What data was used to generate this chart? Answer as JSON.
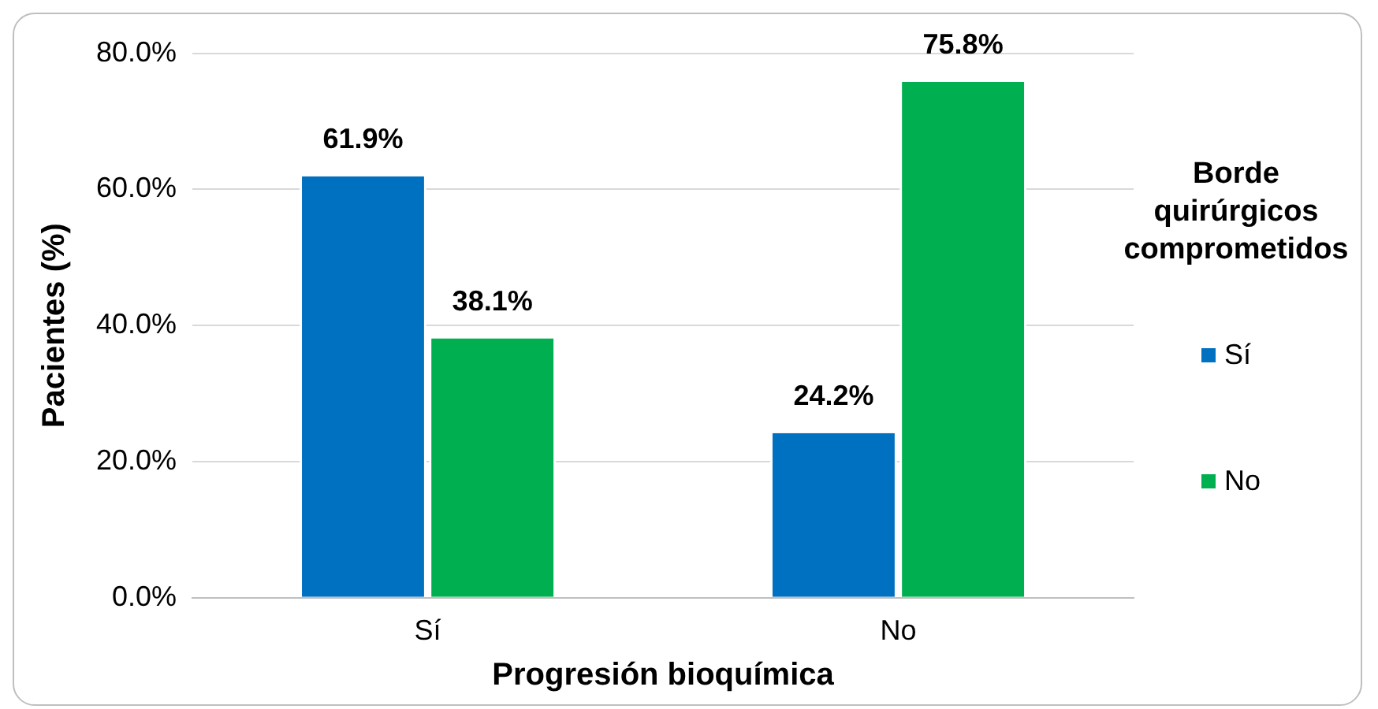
{
  "chart_data": {
    "type": "bar",
    "xlabel": "Progresión bioquímica",
    "ylabel": "Pacientes (%)",
    "legend_title": "Borde quirúrgicos comprometidos",
    "categories": [
      "Sí",
      "No"
    ],
    "series": [
      {
        "name": "Sí",
        "color": "#0070c0",
        "values": [
          61.9,
          24.2
        ],
        "value_labels": [
          "61.9%",
          "24.2%"
        ]
      },
      {
        "name": "No",
        "color": "#00b050",
        "values": [
          38.1,
          75.8
        ],
        "value_labels": [
          "38.1%",
          "75.8%"
        ]
      }
    ],
    "ylim": [
      0,
      80
    ],
    "yticks": [
      {
        "value": 0,
        "label": "0.0%"
      },
      {
        "value": 20,
        "label": "20.0%"
      },
      {
        "value": 40,
        "label": "40.0%"
      },
      {
        "value": 60,
        "label": "60.0%"
      },
      {
        "value": 80,
        "label": "80.0%"
      }
    ],
    "grid": "y",
    "legend": "right"
  }
}
